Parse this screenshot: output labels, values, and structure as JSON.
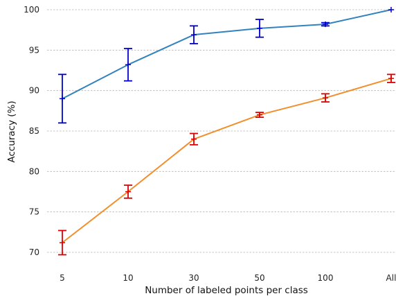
{
  "chart_data": {
    "type": "line",
    "categories": [
      "5",
      "10",
      "30",
      "50",
      "100",
      "All"
    ],
    "xlabel": "Number of labeled points per class",
    "ylabel": "Accuracy (%)",
    "ylim": [
      69,
      100
    ],
    "yticks": [
      70,
      75,
      80,
      85,
      90,
      95,
      100
    ],
    "grid": "horizontal dashed",
    "series": [
      {
        "line_color": "#3182bd",
        "errorbar_color": "#0000cc",
        "values": [
          89.0,
          93.2,
          96.9,
          97.7,
          98.2,
          100.0
        ],
        "errors": [
          3.0,
          2.0,
          1.1,
          1.1,
          0.2,
          0.0
        ]
      },
      {
        "line_color": "#f28e2b",
        "errorbar_color": "#dd0000",
        "values": [
          71.2,
          77.5,
          84.0,
          87.0,
          89.1,
          91.5
        ],
        "errors": [
          1.5,
          0.8,
          0.7,
          0.3,
          0.5,
          0.5
        ]
      }
    ]
  }
}
